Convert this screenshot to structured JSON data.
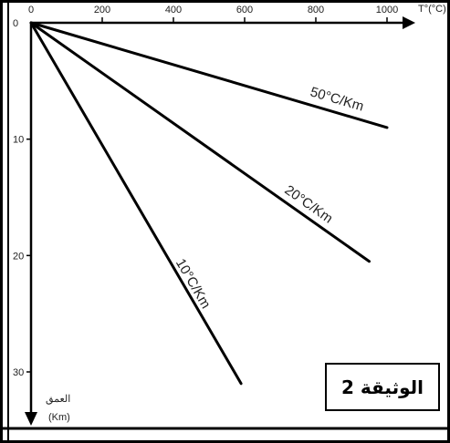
{
  "chart_data": {
    "type": "line",
    "title": "",
    "xlabel": "T°(°C)",
    "ylabel": "العمق",
    "ylabel_unit": "(Km)",
    "x_ticks": [
      0,
      200,
      400,
      600,
      800,
      1000
    ],
    "y_ticks": [
      0,
      10,
      20,
      30
    ],
    "xlim": [
      0,
      1120
    ],
    "ylim": [
      0,
      34
    ],
    "series": [
      {
        "name": "50°C/Km",
        "x": [
          0,
          1000
        ],
        "y": [
          0,
          9
        ]
      },
      {
        "name": "20°C/Km",
        "x": [
          0,
          950
        ],
        "y": [
          0,
          20.5
        ]
      },
      {
        "name": "10°C/Km",
        "x": [
          0,
          590
        ],
        "y": [
          0,
          31
        ]
      }
    ]
  },
  "document_label": "الوثيقة 2"
}
